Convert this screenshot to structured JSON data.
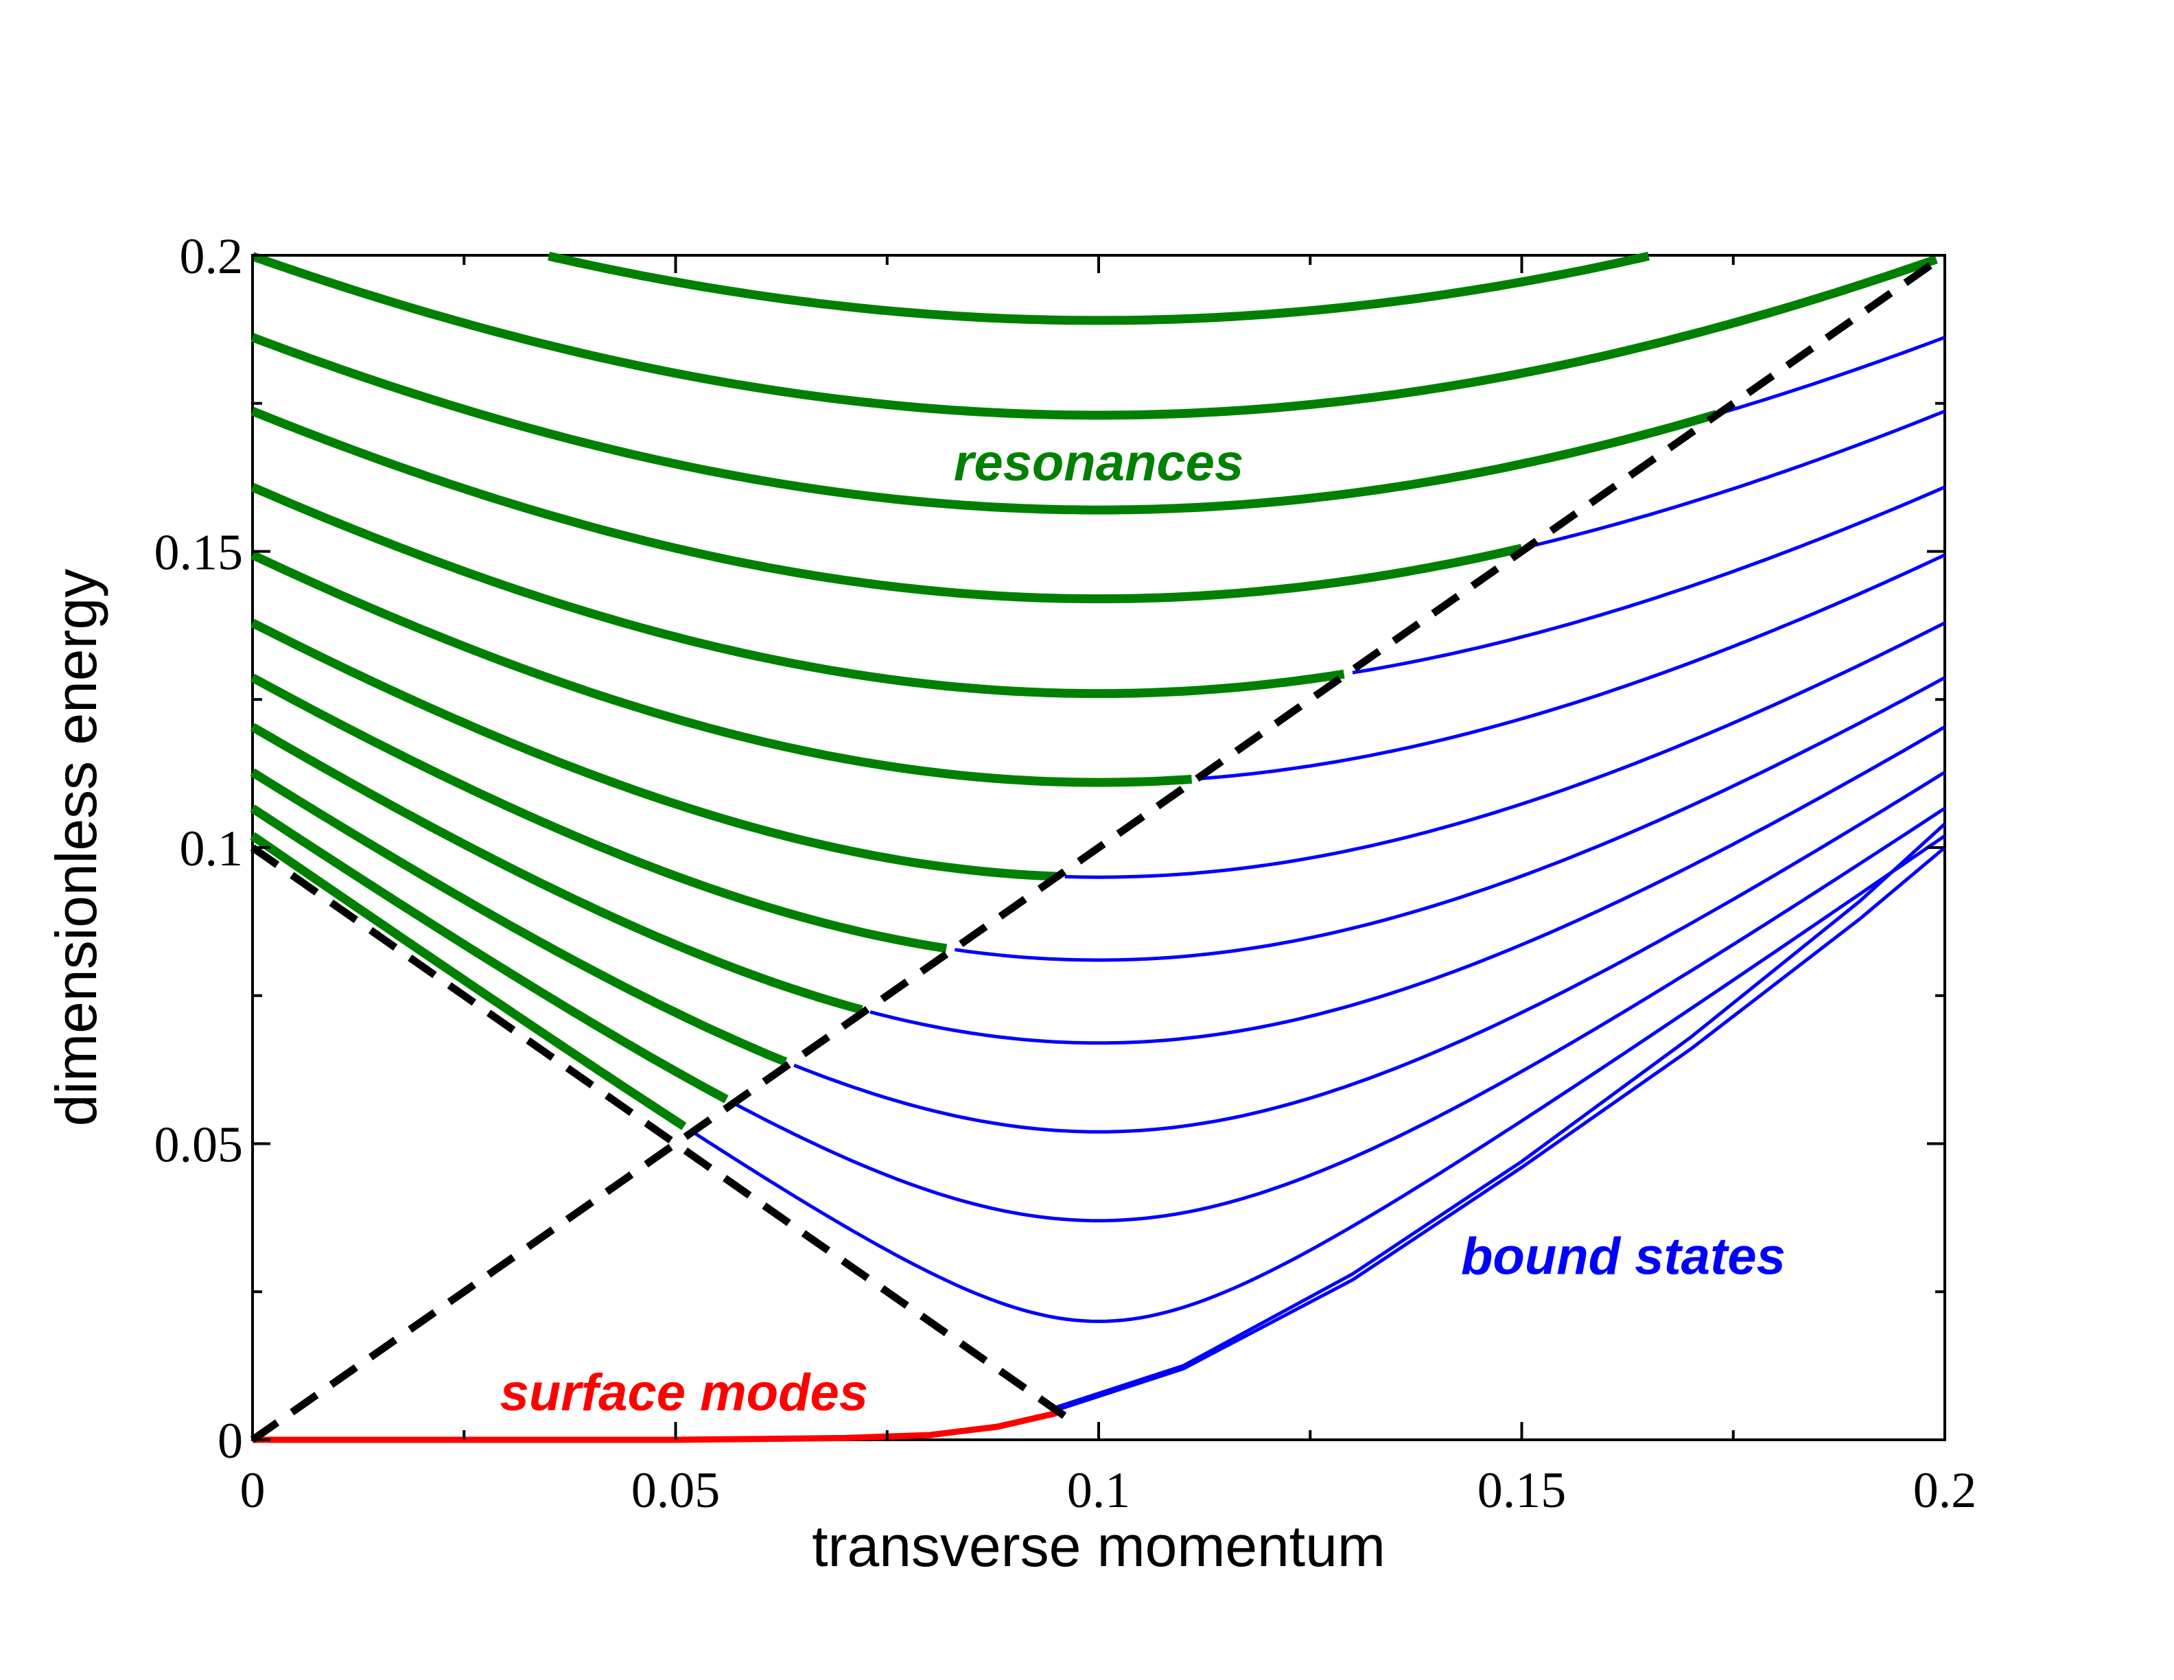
{
  "chart_data": {
    "type": "line",
    "title": "",
    "xlabel": "transverse momentum",
    "ylabel": "dimensionless energy",
    "xlim": [
      0,
      0.2
    ],
    "ylim": [
      0,
      0.2
    ],
    "grid": false,
    "x_ticks": [
      {
        "value": 0,
        "label": "0"
      },
      {
        "value": 0.05,
        "label": "0.05"
      },
      {
        "value": 0.1,
        "label": "0.1"
      },
      {
        "value": 0.15,
        "label": "0.15"
      },
      {
        "value": 0.2,
        "label": "0.2"
      }
    ],
    "y_ticks": [
      {
        "value": 0,
        "label": "0"
      },
      {
        "value": 0.05,
        "label": "0.05"
      },
      {
        "value": 0.1,
        "label": "0.1"
      },
      {
        "value": 0.15,
        "label": "0.15"
      },
      {
        "value": 0.2,
        "label": "0.2"
      }
    ],
    "annotations": [
      {
        "text": "resonances",
        "x": 0.1,
        "y": 0.165,
        "color": "#008000"
      },
      {
        "text": "bound states",
        "x": 0.162,
        "y": 0.031,
        "color": "#0000ff"
      },
      {
        "text": "surface modes",
        "x": 0.051,
        "y": 0.008,
        "color": "#ff0000"
      }
    ],
    "colors": {
      "resonance": "#008000",
      "bound": "#0000ff",
      "surface": "#ff0000",
      "dashed": "#000000"
    },
    "band_model": {
      "k0": 0.1,
      "q0": 0.0
    },
    "band_levels": [
      {
        "mode": 1,
        "q": 0.02
      },
      {
        "mode": 2,
        "q": 0.037
      },
      {
        "mode": 3,
        "q": 0.052
      },
      {
        "mode": 4,
        "q": 0.067
      },
      {
        "mode": 5,
        "q": 0.081
      },
      {
        "mode": 6,
        "q": 0.095
      },
      {
        "mode": 7,
        "q": 0.111
      },
      {
        "mode": 8,
        "q": 0.126
      },
      {
        "mode": 9,
        "q": 0.142
      },
      {
        "mode": 10,
        "q": 0.157
      },
      {
        "mode": 11,
        "q": 0.173
      },
      {
        "mode": 12,
        "q": 0.189
      }
    ],
    "series": [
      {
        "kind": "dashed",
        "points": [
          [
            0,
            0
          ],
          [
            0.2,
            0.2
          ]
        ]
      },
      {
        "kind": "dashed",
        "points": [
          [
            0,
            0.1
          ],
          [
            0.097,
            0.003
          ]
        ]
      },
      {
        "kind": "surface",
        "points": [
          [
            0,
            0
          ],
          [
            0.05,
            0.0
          ],
          [
            0.07,
            0.0003
          ],
          [
            0.08,
            0.0008
          ],
          [
            0.088,
            0.0022
          ],
          [
            0.095,
            0.0045
          ]
        ]
      },
      {
        "kind": "bound",
        "points": [
          [
            0.095,
            0.005
          ],
          [
            0.11,
            0.012
          ],
          [
            0.13,
            0.027
          ],
          [
            0.15,
            0.046
          ],
          [
            0.17,
            0.066
          ],
          [
            0.19,
            0.088
          ],
          [
            0.2,
            0.1
          ]
        ]
      },
      {
        "kind": "bound",
        "points": [
          [
            0.095,
            0.0055
          ],
          [
            0.11,
            0.0125
          ],
          [
            0.13,
            0.028
          ],
          [
            0.15,
            0.047
          ],
          [
            0.17,
            0.068
          ],
          [
            0.19,
            0.091
          ],
          [
            0.2,
            0.104
          ]
        ]
      }
    ]
  }
}
